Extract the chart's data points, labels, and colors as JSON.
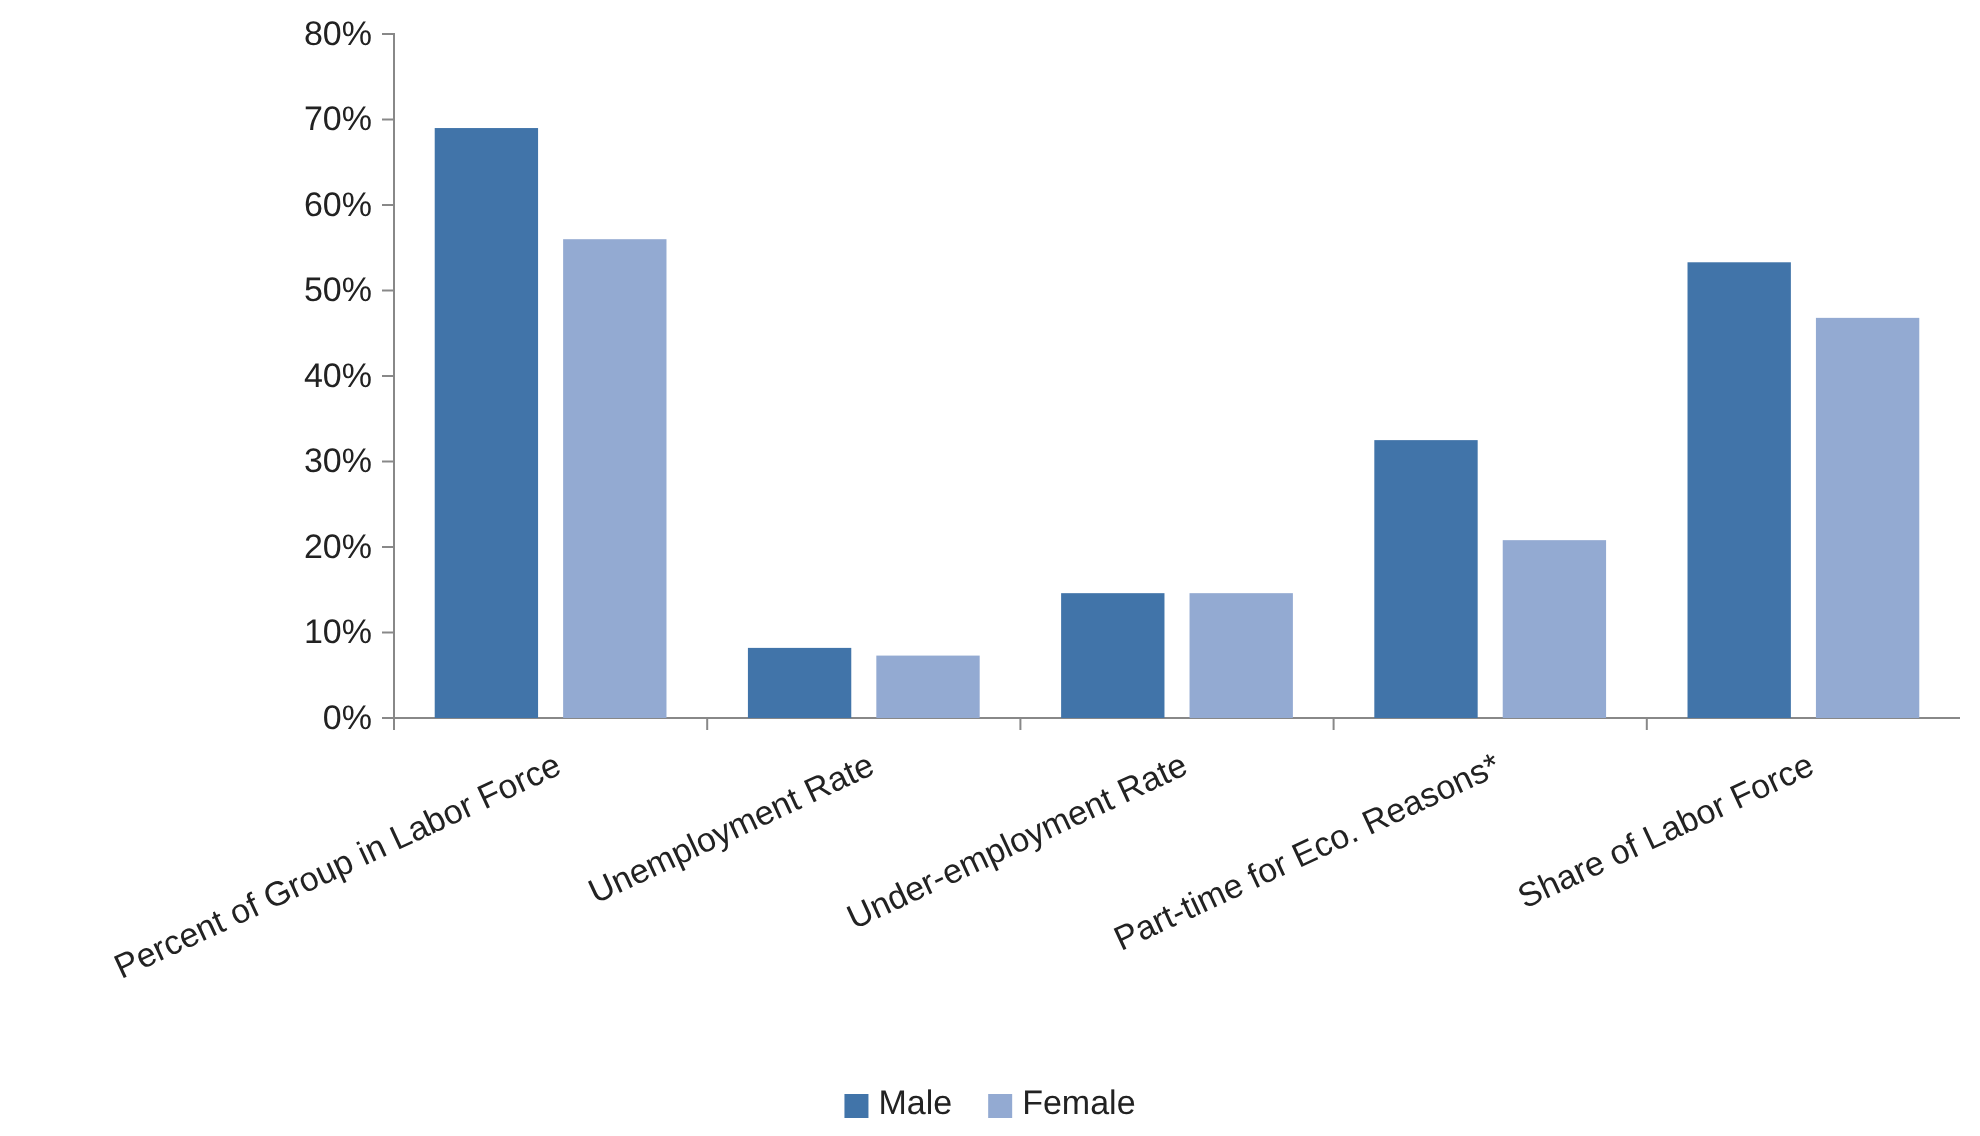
{
  "chart_data": {
    "type": "bar",
    "categories": [
      "Percent of Group in Labor Force",
      "Unemployment Rate",
      "Under-employment Rate",
      "Part-time for Eco. Reasons*",
      "Share of Labor Force"
    ],
    "series": [
      {
        "name": "Male",
        "color": "#4174a9",
        "values": [
          69,
          8.2,
          14.6,
          32.5,
          53.3
        ]
      },
      {
        "name": "Female",
        "color": "#93aad2",
        "values": [
          56,
          7.3,
          14.6,
          20.8,
          46.8
        ]
      }
    ],
    "ylim": [
      0,
      80
    ],
    "yticks": [
      {
        "value": 0,
        "label": "0%"
      },
      {
        "value": 10,
        "label": "10%"
      },
      {
        "value": 20,
        "label": "20%"
      },
      {
        "value": 30,
        "label": "30%"
      },
      {
        "value": 40,
        "label": "40%"
      },
      {
        "value": 50,
        "label": "50%"
      },
      {
        "value": 60,
        "label": "60%"
      },
      {
        "value": 70,
        "label": "70%"
      },
      {
        "value": 80,
        "label": "80%"
      }
    ],
    "legend": "bottom"
  }
}
